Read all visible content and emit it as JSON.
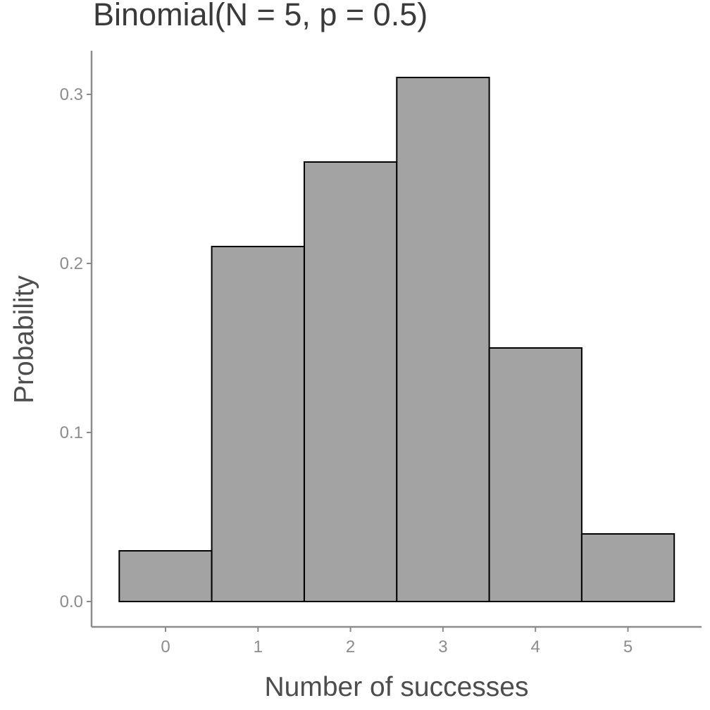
{
  "chart_data": {
    "type": "bar",
    "title": "Binomial(N = 5, p = 0.5)",
    "xlabel": "Number of successes",
    "ylabel": "Probability",
    "categories": [
      "0",
      "1",
      "2",
      "3",
      "4",
      "5"
    ],
    "values": [
      0.03,
      0.21,
      0.26,
      0.31,
      0.15,
      0.04
    ],
    "x_ticks": [
      "0",
      "1",
      "2",
      "3",
      "4",
      "5"
    ],
    "y_ticks": [
      "0.0",
      "0.1",
      "0.2",
      "0.3"
    ],
    "ylim": [
      0,
      0.32
    ],
    "grid": false,
    "colors": {
      "bar_fill": "#a3a3a3",
      "bar_stroke": "#000000",
      "axis": "#8c8c8c"
    }
  }
}
